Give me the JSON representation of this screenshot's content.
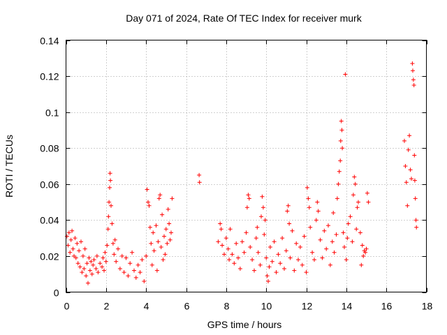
{
  "chart_data": {
    "type": "scatter",
    "title": "Day 071 of 2024, Rate Of TEC Index for receiver murk",
    "xlabel": "GPS time / hours",
    "ylabel": "ROTI / TECUs",
    "xlim": [
      0,
      18
    ],
    "ylim": [
      0,
      0.14
    ],
    "xticks": [
      0,
      2,
      4,
      6,
      8,
      10,
      12,
      14,
      16,
      18
    ],
    "yticks": [
      0,
      0.02,
      0.04,
      0.06,
      0.08,
      0.1,
      0.12,
      0.14
    ],
    "xtick_labels": [
      "0",
      "2",
      "4",
      "6",
      "8",
      "10",
      "12",
      "14",
      "16",
      "18"
    ],
    "ytick_labels": [
      "0",
      "0.02",
      "0.04",
      "0.06",
      "0.08",
      "0.1",
      "0.12",
      "0.14"
    ],
    "grid": true,
    "marker": "+",
    "color": "#ff0000",
    "series": [
      {
        "name": "ROTI",
        "points": [
          [
            0.05,
            0.031
          ],
          [
            0.1,
            0.026
          ],
          [
            0.15,
            0.033
          ],
          [
            0.2,
            0.022
          ],
          [
            0.25,
            0.029
          ],
          [
            0.3,
            0.034
          ],
          [
            0.35,
            0.024
          ],
          [
            0.4,
            0.02
          ],
          [
            0.45,
            0.03
          ],
          [
            0.5,
            0.019
          ],
          [
            0.55,
            0.027
          ],
          [
            0.6,
            0.016
          ],
          [
            0.65,
            0.023
          ],
          [
            0.7,
            0.014
          ],
          [
            0.75,
            0.028
          ],
          [
            0.8,
            0.011
          ],
          [
            0.85,
            0.02
          ],
          [
            0.9,
            0.013
          ],
          [
            0.95,
            0.024
          ],
          [
            1.0,
            0.009
          ],
          [
            1.05,
            0.016
          ],
          [
            1.1,
            0.005
          ],
          [
            1.15,
            0.019
          ],
          [
            1.2,
            0.012
          ],
          [
            1.25,
            0.017
          ],
          [
            1.3,
            0.01
          ],
          [
            1.35,
            0.015
          ],
          [
            1.4,
            0.018
          ],
          [
            1.5,
            0.013
          ],
          [
            1.55,
            0.02
          ],
          [
            1.6,
            0.011
          ],
          [
            1.7,
            0.016
          ],
          [
            1.8,
            0.014
          ],
          [
            1.85,
            0.019
          ],
          [
            1.9,
            0.012
          ],
          [
            1.95,
            0.022
          ],
          [
            2.0,
            0.017
          ],
          [
            2.05,
            0.026
          ],
          [
            2.1,
            0.035
          ],
          [
            2.12,
            0.042
          ],
          [
            2.15,
            0.05
          ],
          [
            2.18,
            0.058
          ],
          [
            2.2,
            0.066
          ],
          [
            2.22,
            0.062
          ],
          [
            2.25,
            0.048
          ],
          [
            2.3,
            0.038
          ],
          [
            2.35,
            0.027
          ],
          [
            2.4,
            0.021
          ],
          [
            2.45,
            0.029
          ],
          [
            2.5,
            0.017
          ],
          [
            2.6,
            0.024
          ],
          [
            2.7,
            0.013
          ],
          [
            2.8,
            0.02
          ],
          [
            2.9,
            0.011
          ],
          [
            3.0,
            0.019
          ],
          [
            3.1,
            0.009
          ],
          [
            3.2,
            0.016
          ],
          [
            3.3,
            0.022
          ],
          [
            3.4,
            0.012
          ],
          [
            3.5,
            0.008
          ],
          [
            3.6,
            0.015
          ],
          [
            3.7,
            0.011
          ],
          [
            3.8,
            0.018
          ],
          [
            3.9,
            0.006
          ],
          [
            4.0,
            0.02
          ],
          [
            4.05,
            0.057
          ],
          [
            4.1,
            0.05
          ],
          [
            4.15,
            0.048
          ],
          [
            4.2,
            0.036
          ],
          [
            4.25,
            0.027
          ],
          [
            4.3,
            0.015
          ],
          [
            4.35,
            0.033
          ],
          [
            4.4,
            0.023
          ],
          [
            4.5,
            0.037
          ],
          [
            4.55,
            0.012
          ],
          [
            4.6,
            0.028
          ],
          [
            4.65,
            0.052
          ],
          [
            4.7,
            0.054
          ],
          [
            4.75,
            0.025
          ],
          [
            4.8,
            0.043
          ],
          [
            4.85,
            0.018
          ],
          [
            4.9,
            0.031
          ],
          [
            4.95,
            0.021
          ],
          [
            5.0,
            0.035
          ],
          [
            5.05,
            0.027
          ],
          [
            5.1,
            0.046
          ],
          [
            5.15,
            0.038
          ],
          [
            5.2,
            0.029
          ],
          [
            5.25,
            0.033
          ],
          [
            5.3,
            0.052
          ],
          [
            6.65,
            0.065
          ],
          [
            6.67,
            0.061
          ],
          [
            7.6,
            0.028
          ],
          [
            7.7,
            0.038
          ],
          [
            7.75,
            0.035
          ],
          [
            7.8,
            0.026
          ],
          [
            7.9,
            0.021
          ],
          [
            8.0,
            0.03
          ],
          [
            8.1,
            0.024
          ],
          [
            8.15,
            0.018
          ],
          [
            8.2,
            0.035
          ],
          [
            8.3,
            0.021
          ],
          [
            8.4,
            0.016
          ],
          [
            8.5,
            0.027
          ],
          [
            8.6,
            0.019
          ],
          [
            8.7,
            0.013
          ],
          [
            8.8,
            0.028
          ],
          [
            8.9,
            0.022
          ],
          [
            9.0,
            0.033
          ],
          [
            9.05,
            0.047
          ],
          [
            9.1,
            0.054
          ],
          [
            9.15,
            0.052
          ],
          [
            9.2,
            0.025
          ],
          [
            9.3,
            0.018
          ],
          [
            9.4,
            0.012
          ],
          [
            9.5,
            0.03
          ],
          [
            9.55,
            0.036
          ],
          [
            9.6,
            0.022
          ],
          [
            9.7,
            0.015
          ],
          [
            9.75,
            0.042
          ],
          [
            9.8,
            0.053
          ],
          [
            9.85,
            0.047
          ],
          [
            9.9,
            0.032
          ],
          [
            9.95,
            0.04
          ],
          [
            10.0,
            0.019
          ],
          [
            10.05,
            0.009
          ],
          [
            10.1,
            0.006
          ],
          [
            10.15,
            0.014
          ],
          [
            10.2,
            0.025
          ],
          [
            10.3,
            0.017
          ],
          [
            10.4,
            0.028
          ],
          [
            10.5,
            0.011
          ],
          [
            10.6,
            0.021
          ],
          [
            10.7,
            0.016
          ],
          [
            10.8,
            0.03
          ],
          [
            10.9,
            0.013
          ],
          [
            11.0,
            0.023
          ],
          [
            11.05,
            0.045
          ],
          [
            11.1,
            0.048
          ],
          [
            11.15,
            0.038
          ],
          [
            11.2,
            0.019
          ],
          [
            11.3,
            0.034
          ],
          [
            11.4,
            0.012
          ],
          [
            11.5,
            0.027
          ],
          [
            11.6,
            0.018
          ],
          [
            11.7,
            0.025
          ],
          [
            11.8,
            0.015
          ],
          [
            11.9,
            0.031
          ],
          [
            12.0,
            0.011
          ],
          [
            12.05,
            0.058
          ],
          [
            12.1,
            0.052
          ],
          [
            12.15,
            0.047
          ],
          [
            12.2,
            0.036
          ],
          [
            12.3,
            0.022
          ],
          [
            12.4,
            0.018
          ],
          [
            12.5,
            0.04
          ],
          [
            12.55,
            0.05
          ],
          [
            12.6,
            0.045
          ],
          [
            12.7,
            0.029
          ],
          [
            12.8,
            0.019
          ],
          [
            12.9,
            0.034
          ],
          [
            13.0,
            0.024
          ],
          [
            13.1,
            0.037
          ],
          [
            13.2,
            0.015
          ],
          [
            13.3,
            0.028
          ],
          [
            13.35,
            0.044
          ],
          [
            13.4,
            0.022
          ],
          [
            13.5,
            0.032
          ],
          [
            13.55,
            0.052
          ],
          [
            13.6,
            0.06
          ],
          [
            13.65,
            0.067
          ],
          [
            13.7,
            0.073
          ],
          [
            13.72,
            0.084
          ],
          [
            13.75,
            0.095
          ],
          [
            13.78,
            0.09
          ],
          [
            13.8,
            0.08
          ],
          [
            13.85,
            0.033
          ],
          [
            13.9,
            0.025
          ],
          [
            13.95,
            0.121
          ],
          [
            14.0,
            0.018
          ],
          [
            14.05,
            0.03
          ],
          [
            14.1,
            0.038
          ],
          [
            14.2,
            0.042
          ],
          [
            14.3,
            0.028
          ],
          [
            14.35,
            0.054
          ],
          [
            14.4,
            0.064
          ],
          [
            14.45,
            0.06
          ],
          [
            14.5,
            0.035
          ],
          [
            14.55,
            0.047
          ],
          [
            14.6,
            0.05
          ],
          [
            14.7,
            0.033
          ],
          [
            14.75,
            0.015
          ],
          [
            14.8,
            0.026
          ],
          [
            14.85,
            0.02
          ],
          [
            14.9,
            0.023
          ],
          [
            14.95,
            0.022
          ],
          [
            15.0,
            0.024
          ],
          [
            15.05,
            0.055
          ],
          [
            15.1,
            0.05
          ],
          [
            16.9,
            0.084
          ],
          [
            16.95,
            0.07
          ],
          [
            17.0,
            0.061
          ],
          [
            17.05,
            0.048
          ],
          [
            17.1,
            0.079
          ],
          [
            17.15,
            0.087
          ],
          [
            17.2,
            0.068
          ],
          [
            17.25,
            0.063
          ],
          [
            17.3,
            0.127
          ],
          [
            17.32,
            0.123
          ],
          [
            17.35,
            0.118
          ],
          [
            17.38,
            0.115
          ],
          [
            17.4,
            0.076
          ],
          [
            17.42,
            0.062
          ],
          [
            17.45,
            0.052
          ],
          [
            17.48,
            0.04
          ],
          [
            17.5,
            0.036
          ]
        ]
      }
    ]
  }
}
